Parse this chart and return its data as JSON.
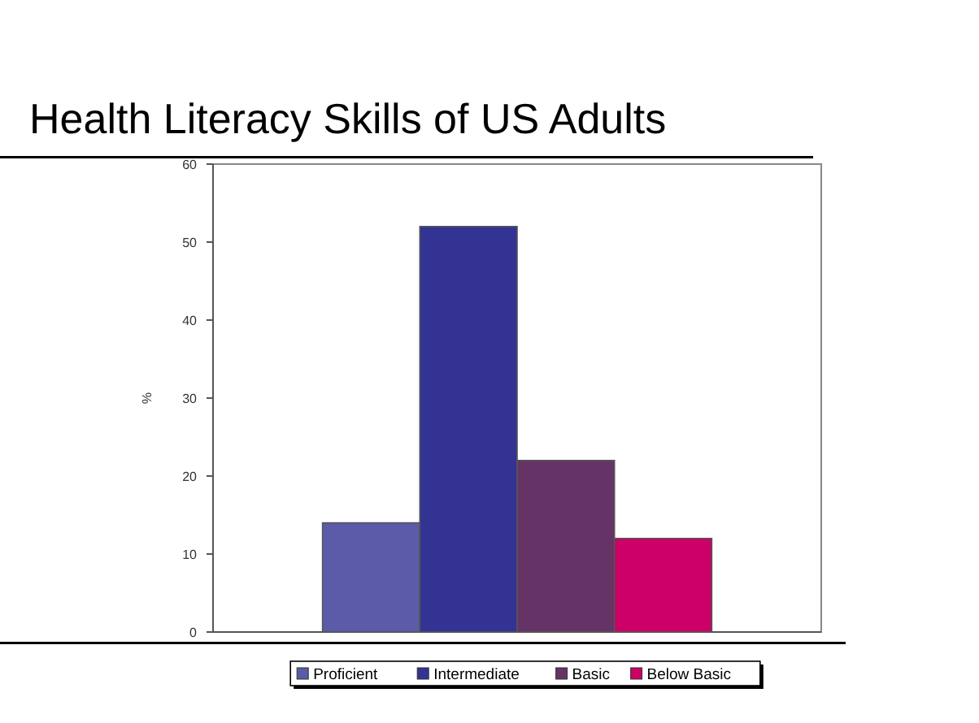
{
  "chart_data": {
    "type": "bar",
    "title": "Health Literacy Skills of US Adults",
    "ylabel": "%",
    "categories": [
      null
    ],
    "series": [
      {
        "name": "Proficient",
        "color": "#5b5ba9",
        "values": [
          14
        ]
      },
      {
        "name": "Intermediate",
        "color": "#333394",
        "values": [
          52
        ]
      },
      {
        "name": "Basic",
        "color": "#663366",
        "values": [
          22
        ]
      },
      {
        "name": "Below Basic",
        "color": "#cc0066",
        "values": [
          12
        ]
      }
    ],
    "ylim": [
      0,
      60
    ],
    "yticks": [
      0,
      10,
      20,
      30,
      40,
      50,
      60
    ],
    "grid": false,
    "legend": "bottom"
  }
}
